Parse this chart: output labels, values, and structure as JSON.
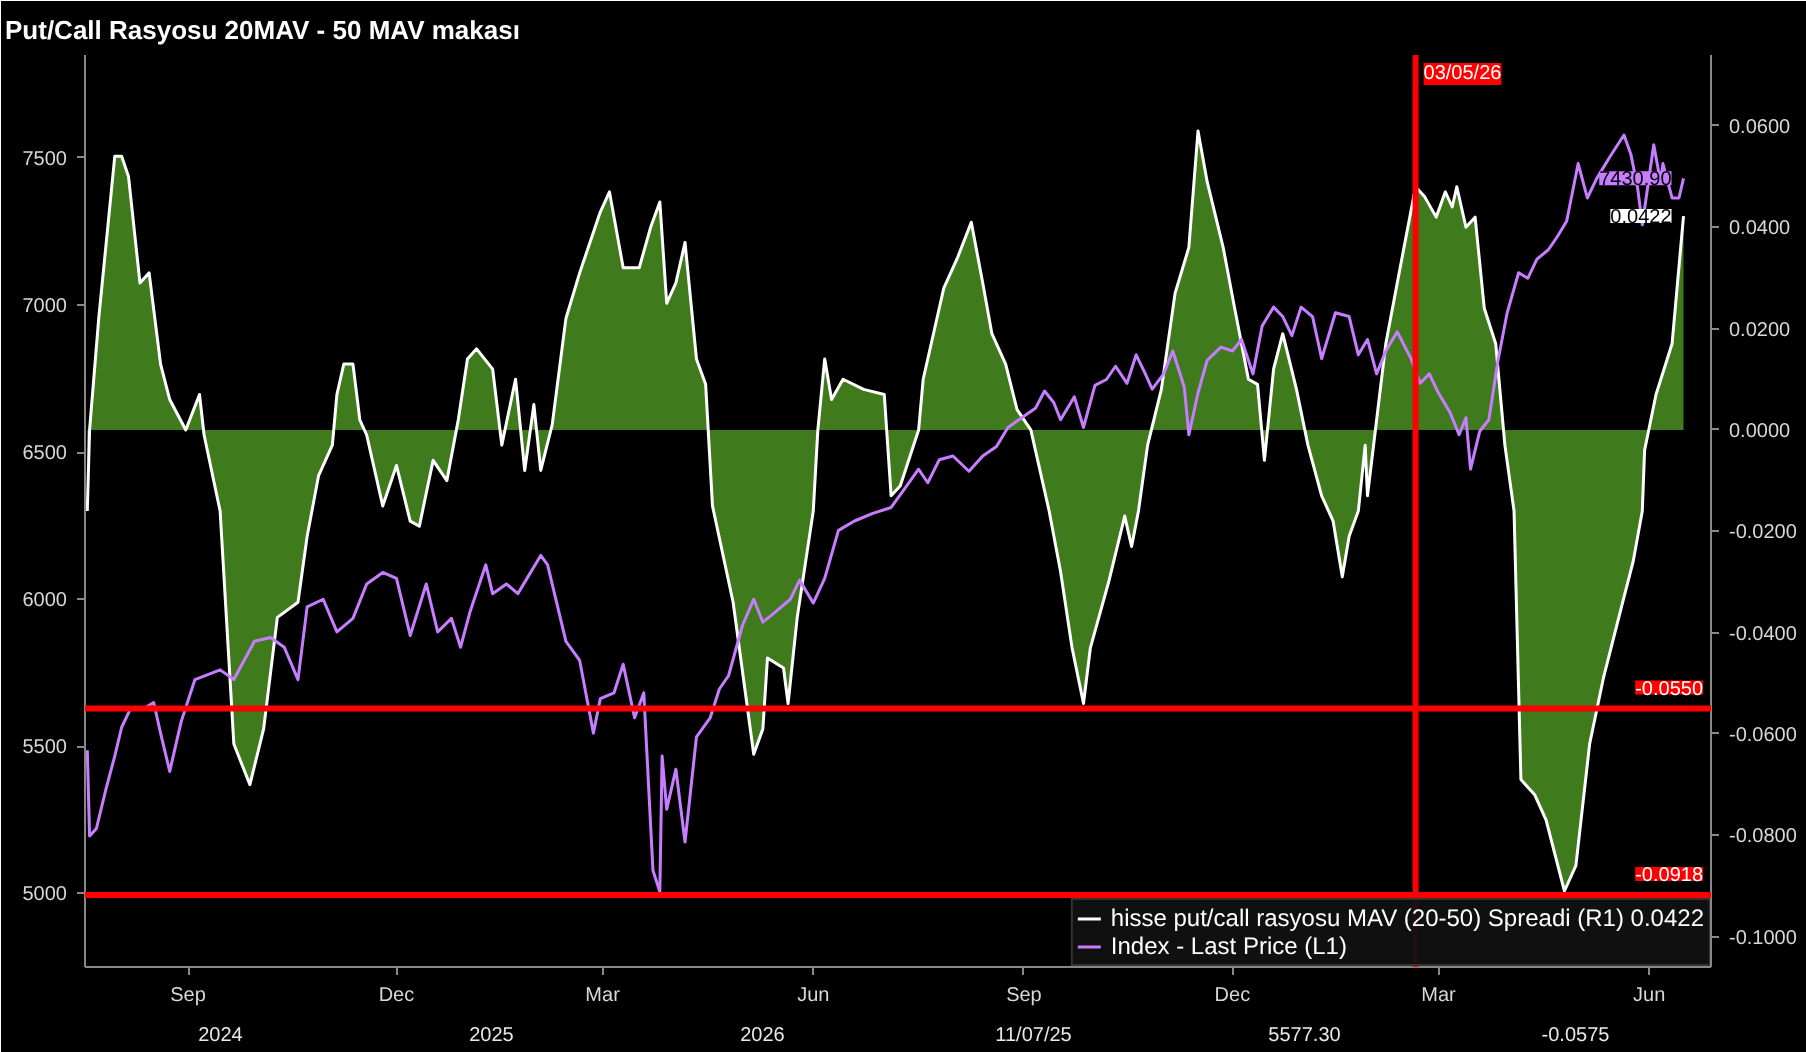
{
  "chart_data": {
    "type": "line",
    "title": "Put/Call Rasyosu 20MAV - 50 MAV makası",
    "xlim": [
      "2024-08-01",
      "2026-07-12"
    ],
    "xticks": [
      {
        "value": "2024-09-15",
        "label": "Sep"
      },
      {
        "value": "2024-12-15",
        "label": "Dec"
      },
      {
        "value": "2025-03-15",
        "label": "Mar"
      },
      {
        "value": "2025-06-15",
        "label": "Jun"
      },
      {
        "value": "2025-09-15",
        "label": "Sep"
      },
      {
        "value": "2025-12-15",
        "label": "Dec"
      },
      {
        "value": "2026-03-15",
        "label": "Mar"
      },
      {
        "value": "2026-06-15",
        "label": "Jun"
      }
    ],
    "ylim": [
      4750,
      7850
    ],
    "yticks": [
      5000,
      5500,
      6000,
      6500,
      7000,
      7500
    ],
    "y2lim": [
      -0.106,
      0.074
    ],
    "y2ticks": [
      {
        "value": 0.06,
        "label": "0.0600"
      },
      {
        "value": 0.04,
        "label": "0.0400"
      },
      {
        "value": 0.02,
        "label": "0.0200"
      },
      {
        "value": 0,
        "label": "0.0000"
      },
      {
        "value": -0.02,
        "label": "-0.0200"
      },
      {
        "value": -0.04,
        "label": "-0.0400"
      },
      {
        "value": -0.06,
        "label": "-0.0600"
      },
      {
        "value": -0.08,
        "label": "-0.0800"
      },
      {
        "value": -0.1,
        "label": "-0.1000"
      }
    ],
    "grid": false,
    "legend": "bottom right",
    "series": [
      {
        "name": "hisse put/call rasyosu MAV (20-50) Spreadi (R1) 0.0422",
        "type": "area",
        "axis": "y2",
        "color": "#ffffff",
        "x": [
          "2024-08-02",
          "2024-08-03",
          "2024-08-07",
          "2024-08-14",
          "2024-08-17",
          "2024-08-20",
          "2024-08-25",
          "2024-08-29",
          "2024-09-03",
          "2024-09-07",
          "2024-09-14",
          "2024-09-20",
          "2024-09-22",
          "2024-09-29",
          "2024-10-05",
          "2024-10-12",
          "2024-10-18",
          "2024-10-24",
          "2024-11-02",
          "2024-11-06",
          "2024-11-11",
          "2024-11-17",
          "2024-11-19",
          "2024-11-22",
          "2024-11-26",
          "2024-11-29",
          "2024-12-02",
          "2024-12-09",
          "2024-12-15",
          "2024-12-21",
          "2024-12-25",
          "2024-12-31",
          "2025-01-06",
          "2025-01-11",
          "2025-01-15",
          "2025-01-19",
          "2025-01-26",
          "2025-01-30",
          "2025-02-05",
          "2025-02-09",
          "2025-02-13",
          "2025-02-16",
          "2025-02-21",
          "2025-02-27",
          "2025-03-05",
          "2025-03-14",
          "2025-03-18",
          "2025-03-24",
          "2025-03-31",
          "2025-04-05",
          "2025-04-09",
          "2025-04-12",
          "2025-04-16",
          "2025-04-20",
          "2025-04-25",
          "2025-04-29",
          "2025-05-02",
          "2025-05-11",
          "2025-05-20",
          "2025-05-24",
          "2025-05-26",
          "2025-06-02",
          "2025-06-04",
          "2025-06-08",
          "2025-06-15",
          "2025-06-17",
          "2025-06-20",
          "2025-06-23",
          "2025-06-28",
          "2025-07-07",
          "2025-07-16",
          "2025-07-19",
          "2025-07-23",
          "2025-07-31",
          "2025-08-02",
          "2025-08-11",
          "2025-08-17",
          "2025-08-23",
          "2025-08-28",
          "2025-09-01",
          "2025-09-07",
          "2025-09-12",
          "2025-09-18",
          "2025-09-26",
          "2025-10-01",
          "2025-10-06",
          "2025-10-11",
          "2025-10-14",
          "2025-10-22",
          "2025-10-29",
          "2025-11-01",
          "2025-11-04",
          "2025-11-08",
          "2025-11-14",
          "2025-11-20",
          "2025-11-26",
          "2025-11-30",
          "2025-12-04",
          "2025-12-11",
          "2025-12-16",
          "2025-12-22",
          "2025-12-26",
          "2025-12-29",
          "2026-01-02",
          "2026-01-06",
          "2026-01-12",
          "2026-01-17",
          "2026-01-23",
          "2026-01-28",
          "2026-02-01",
          "2026-02-04",
          "2026-02-08",
          "2026-02-11",
          "2026-02-12",
          "2026-02-20",
          "2026-02-25",
          "2026-03-05",
          "2026-03-09",
          "2026-03-14",
          "2026-03-18",
          "2026-03-21",
          "2026-03-23",
          "2026-03-27",
          "2026-03-31",
          "2026-04-04",
          "2026-04-09",
          "2026-04-13",
          "2026-04-17",
          "2026-04-20",
          "2026-04-26",
          "2026-05-01",
          "2026-05-09",
          "2026-05-14",
          "2026-05-20",
          "2026-05-26",
          "2026-06-04",
          "2026-06-08",
          "2026-06-12",
          "2026-06-13",
          "2026-06-18",
          "2026-06-25",
          "2026-06-30"
        ],
        "values": [
          -0.016,
          0,
          0.022,
          0.054,
          0.054,
          0.05,
          0.029,
          0.031,
          0.013,
          0.006,
          0,
          0.007,
          -0.001,
          -0.016,
          -0.062,
          -0.07,
          -0.059,
          -0.037,
          -0.034,
          -0.021,
          -0.009,
          -0.003,
          0.007,
          0.013,
          0.013,
          0.002,
          -0.001,
          -0.015,
          -0.007,
          -0.018,
          -0.019,
          -0.006,
          -0.01,
          0.002,
          0.014,
          0.016,
          0.012,
          -0.003,
          0.01,
          -0.008,
          0.005,
          -0.008,
          0.001,
          0.022,
          0.031,
          0.043,
          0.047,
          0.032,
          0.032,
          0.04,
          0.045,
          0.025,
          0.029,
          0.037,
          0.014,
          0.009,
          -0.015,
          -0.034,
          -0.064,
          -0.059,
          -0.045,
          -0.047,
          -0.054,
          -0.037,
          -0.016,
          0,
          0.014,
          0.006,
          0.01,
          0.008,
          0.007,
          -0.013,
          -0.011,
          0,
          0.01,
          0.028,
          0.034,
          0.041,
          0.029,
          0.019,
          0.013,
          0.004,
          0,
          -0.016,
          -0.028,
          -0.043,
          -0.054,
          -0.043,
          -0.03,
          -0.017,
          -0.023,
          -0.016,
          -0.003,
          0.008,
          0.027,
          0.036,
          0.059,
          0.049,
          0.036,
          0.024,
          0.01,
          0.009,
          -0.006,
          0.012,
          0.019,
          0.008,
          -0.003,
          -0.013,
          -0.018,
          -0.029,
          -0.021,
          -0.016,
          -0.003,
          -0.013,
          0.017,
          0.029,
          0.048,
          0.046,
          0.042,
          0.047,
          0.044,
          0.048,
          0.04,
          0.042,
          0.024,
          0.017,
          -0.003,
          -0.016,
          -0.069,
          -0.072,
          -0.077,
          -0.091,
          -0.086,
          -0.062,
          -0.049,
          -0.033,
          -0.026,
          -0.016,
          -0.004,
          0.007,
          0.017,
          0.0422
        ],
        "value_labels": [
          null,
          null,
          null,
          null,
          null,
          null,
          null,
          null,
          null,
          null,
          null,
          null,
          null,
          null,
          null,
          null,
          null,
          null,
          null,
          null,
          null,
          null,
          null,
          null,
          null,
          null,
          null,
          null,
          null,
          null,
          null,
          null,
          null,
          null,
          null,
          null,
          null,
          null,
          null,
          null,
          null,
          null,
          null,
          null,
          null,
          null,
          null,
          null,
          null,
          null,
          null,
          null,
          null,
          null,
          null,
          null,
          null,
          null,
          null,
          null,
          null,
          null,
          null,
          null,
          null,
          null,
          null,
          null,
          null,
          null,
          null,
          null,
          null,
          null,
          null,
          null,
          null,
          null,
          null,
          null,
          null,
          null,
          null,
          null,
          null,
          null,
          null,
          null,
          null,
          null,
          null,
          null,
          null,
          null,
          null,
          null,
          null,
          null,
          null,
          null,
          null,
          null,
          null,
          null,
          null,
          null,
          null,
          null,
          null,
          null,
          null,
          null,
          null,
          null,
          null,
          null,
          null,
          null,
          null,
          null,
          null,
          null,
          null,
          null,
          null,
          null,
          null,
          null,
          null,
          null,
          null,
          null,
          null,
          null,
          null,
          null,
          null,
          null,
          null,
          null,
          null,
          "0.0422"
        ]
      },
      {
        "name": "Index - Last Price (L1)",
        "axis": "y",
        "color": "#c77dff",
        "x": [
          "2024-08-02",
          "2024-08-03",
          "2024-08-06",
          "2024-08-10",
          "2024-08-14",
          "2024-08-17",
          "2024-08-21",
          "2024-08-27",
          "2024-08-31",
          "2024-09-03",
          "2024-09-07",
          "2024-09-12",
          "2024-09-18",
          "2024-09-29",
          "2024-10-05",
          "2024-10-14",
          "2024-10-21",
          "2024-10-27",
          "2024-11-02",
          "2024-11-06",
          "2024-11-13",
          "2024-11-19",
          "2024-11-26",
          "2024-12-02",
          "2024-12-09",
          "2024-12-15",
          "2024-12-21",
          "2024-12-28",
          "2025-01-02",
          "2025-01-08",
          "2025-01-12",
          "2025-01-16",
          "2025-01-23",
          "2025-01-26",
          "2025-02-01",
          "2025-02-06",
          "2025-02-10",
          "2025-02-16",
          "2025-02-19",
          "2025-02-23",
          "2025-02-27",
          "2025-03-05",
          "2025-03-11",
          "2025-03-14",
          "2025-03-20",
          "2025-03-24",
          "2025-03-29",
          "2025-04-02",
          "2025-04-06",
          "2025-04-09",
          "2025-04-10",
          "2025-04-12",
          "2025-04-16",
          "2025-04-20",
          "2025-04-25",
          "2025-05-01",
          "2025-05-05",
          "2025-05-09",
          "2025-05-15",
          "2025-05-20",
          "2025-05-24",
          "2025-05-29",
          "2025-06-05",
          "2025-06-09",
          "2025-06-15",
          "2025-06-20",
          "2025-06-26",
          "2025-07-03",
          "2025-07-11",
          "2025-07-19",
          "2025-07-25",
          "2025-07-31",
          "2025-08-04",
          "2025-08-09",
          "2025-08-15",
          "2025-08-22",
          "2025-08-28",
          "2025-09-03",
          "2025-09-08",
          "2025-09-14",
          "2025-09-20",
          "2025-09-24",
          "2025-09-28",
          "2025-10-01",
          "2025-10-07",
          "2025-10-11",
          "2025-10-16",
          "2025-10-21",
          "2025-10-25",
          "2025-10-30",
          "2025-11-03",
          "2025-11-07",
          "2025-11-10",
          "2025-11-15",
          "2025-11-19",
          "2025-11-24",
          "2025-11-26",
          "2025-11-30",
          "2025-12-04",
          "2025-12-10",
          "2025-12-15",
          "2025-12-19",
          "2025-12-24",
          "2025-12-28",
          "2026-01-02",
          "2026-01-06",
          "2026-01-10",
          "2026-01-14",
          "2026-01-19",
          "2026-01-23",
          "2026-01-29",
          "2026-02-04",
          "2026-02-08",
          "2026-02-12",
          "2026-02-16",
          "2026-02-20",
          "2026-02-25",
          "2026-03-03",
          "2026-03-07",
          "2026-03-11",
          "2026-03-15",
          "2026-03-20",
          "2026-03-24",
          "2026-03-27",
          "2026-03-29",
          "2026-04-02",
          "2026-04-06",
          "2026-04-10",
          "2026-04-14",
          "2026-04-19",
          "2026-04-23",
          "2026-04-27",
          "2026-05-02",
          "2026-05-06",
          "2026-05-10",
          "2026-05-15",
          "2026-05-19",
          "2026-05-23",
          "2026-05-29",
          "2026-06-04",
          "2026-06-07",
          "2026-06-10",
          "2026-06-12",
          "2026-06-17",
          "2026-06-20",
          "2026-06-21",
          "2026-06-25",
          "2026-06-28",
          "2026-06-30"
        ],
        "values": [
          5487,
          5195,
          5221,
          5350,
          5467,
          5565,
          5630,
          5630,
          5649,
          5545,
          5415,
          5584,
          5727,
          5760,
          5727,
          5857,
          5870,
          5837,
          5727,
          5974,
          6000,
          5889,
          5935,
          6052,
          6091,
          6071,
          5877,
          6052,
          5889,
          5935,
          5837,
          5954,
          6117,
          6019,
          6052,
          6019,
          6071,
          6149,
          6117,
          5987,
          5857,
          5792,
          5545,
          5662,
          5682,
          5779,
          5597,
          5682,
          5078,
          5006,
          5467,
          5286,
          5422,
          5175,
          5532,
          5597,
          5695,
          5740,
          5909,
          6000,
          5922,
          5954,
          6000,
          6065,
          5987,
          6071,
          6234,
          6266,
          6292,
          6312,
          6377,
          6442,
          6396,
          6474,
          6487,
          6435,
          6487,
          6519,
          6584,
          6617,
          6649,
          6708,
          6669,
          6610,
          6688,
          6584,
          6727,
          6747,
          6792,
          6734,
          6831,
          6766,
          6714,
          6766,
          6844,
          6721,
          6559,
          6701,
          6812,
          6857,
          6844,
          6883,
          6766,
          6929,
          6993,
          6961,
          6896,
          6993,
          6961,
          6818,
          6974,
          6961,
          6831,
          6883,
          6766,
          6844,
          6909,
          6818,
          6734,
          6766,
          6701,
          6636,
          6559,
          6617,
          6442,
          6571,
          6610,
          6812,
          6974,
          7110,
          7091,
          7156,
          7188,
          7234,
          7286,
          7481,
          7364,
          7429,
          7506,
          7578,
          7513,
          7396,
          7273,
          7545,
          7416,
          7481,
          7364,
          7364,
          7430.9
        ],
        "value_labels": [
          null,
          null,
          null,
          null,
          null,
          null,
          null,
          null,
          null,
          null,
          null,
          null,
          null,
          null,
          null,
          null,
          null,
          null,
          null,
          null,
          null,
          null,
          null,
          null,
          null,
          null,
          null,
          null,
          null,
          null,
          null,
          null,
          null,
          null,
          null,
          null,
          null,
          null,
          null,
          null,
          null,
          null,
          null,
          null,
          null,
          null,
          null,
          null,
          null,
          null,
          null,
          null,
          null,
          null,
          null,
          null,
          null,
          null,
          null,
          null,
          null,
          null,
          null,
          null,
          null,
          null,
          null,
          null,
          null,
          null,
          null,
          null,
          null,
          null,
          null,
          null,
          null,
          null,
          null,
          null,
          null,
          null,
          null,
          null,
          null,
          null,
          null,
          null,
          null,
          null,
          null,
          null,
          null,
          null,
          null,
          null,
          null,
          null,
          null,
          null,
          null,
          null,
          null,
          null,
          null,
          null,
          null,
          null,
          null,
          null,
          null,
          null,
          null,
          null,
          null,
          null,
          null,
          null,
          null,
          null,
          null,
          null,
          null,
          null,
          null,
          null,
          null,
          null,
          null,
          null,
          null,
          null,
          null,
          null,
          null,
          null,
          null,
          null,
          null,
          null,
          null,
          null,
          null,
          null,
          null,
          null,
          null,
          null,
          "7430.90"
        ]
      }
    ],
    "ref_lines": [
      {
        "axis": "y2",
        "value": -0.055,
        "label": "-0.0550",
        "color": "#ff0000"
      },
      {
        "axis": "y2",
        "value": -0.0918,
        "label": "-0.0918",
        "color": "#ff0000"
      },
      {
        "axis": "x",
        "value": "2026-03-05",
        "label": "03/05/26",
        "color": "#ff0000"
      }
    ],
    "annotations": [
      "2024",
      "2025",
      "2026",
      "11/07/25",
      "5577.30",
      "-0.0575"
    ]
  }
}
